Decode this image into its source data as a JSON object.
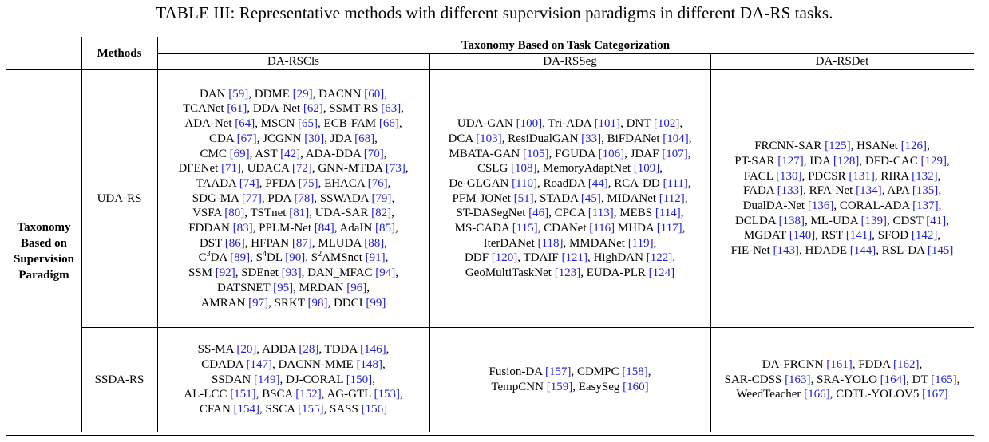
{
  "caption": "TABLE III: Representative methods with different supervision paradigms in different DA-RS tasks.",
  "header": {
    "methods": "Methods",
    "taxonomy_task": "Taxonomy Based on Task Categorization",
    "col_cls": "DA-RSCls",
    "col_seg": "DA-RSSeg",
    "col_det": "DA-RSDet"
  },
  "row_group": {
    "line1": "Taxonomy",
    "line2": "Based on",
    "line3": "Supervision",
    "line4": "Paradigm"
  },
  "rows": {
    "uda": {
      "label": "UDA-RS",
      "cls": [
        [
          [
            "DAN ",
            ""
          ],
          [
            "[59]",
            "r"
          ],
          [
            ", DDME ",
            ""
          ],
          [
            "[29]",
            "r"
          ],
          [
            ", DACNN ",
            ""
          ],
          [
            "[60]",
            "r"
          ],
          [
            ",",
            ""
          ]
        ],
        [
          [
            "TCANet ",
            ""
          ],
          [
            "[61]",
            "r"
          ],
          [
            ", DDA-Net ",
            ""
          ],
          [
            "[62]",
            "r"
          ],
          [
            ", SSMT-RS ",
            ""
          ],
          [
            "[63]",
            "r"
          ],
          [
            ",",
            ""
          ]
        ],
        [
          [
            "ADA-Net ",
            ""
          ],
          [
            "[64]",
            "r"
          ],
          [
            ", MSCN ",
            ""
          ],
          [
            "[65]",
            "r"
          ],
          [
            ", ECB-FAM ",
            ""
          ],
          [
            "[66]",
            "r"
          ],
          [
            ",",
            ""
          ]
        ],
        [
          [
            "CDA ",
            ""
          ],
          [
            "[67]",
            "r"
          ],
          [
            ", JCGNN ",
            ""
          ],
          [
            "[30]",
            "r"
          ],
          [
            ", JDA ",
            ""
          ],
          [
            "[68]",
            "r"
          ],
          [
            ",",
            ""
          ]
        ],
        [
          [
            "CMC ",
            ""
          ],
          [
            "[69]",
            "r"
          ],
          [
            ", AST ",
            ""
          ],
          [
            "[42]",
            "r"
          ],
          [
            ", ADA-DDA ",
            ""
          ],
          [
            "[70]",
            "r"
          ],
          [
            ",",
            ""
          ]
        ],
        [
          [
            "DFENet ",
            ""
          ],
          [
            "[71]",
            "r"
          ],
          [
            ", UDACA ",
            ""
          ],
          [
            "[72]",
            "r"
          ],
          [
            ", GNN-MTDA ",
            ""
          ],
          [
            "[73]",
            "r"
          ],
          [
            ",",
            ""
          ]
        ],
        [
          [
            "TAADA ",
            ""
          ],
          [
            "[74]",
            "r"
          ],
          [
            ", PFDA ",
            ""
          ],
          [
            "[75]",
            "r"
          ],
          [
            ", EHACA ",
            ""
          ],
          [
            "[76]",
            "r"
          ],
          [
            ",",
            ""
          ]
        ],
        [
          [
            "SDG-MA ",
            ""
          ],
          [
            "[77]",
            "r"
          ],
          [
            ", PDA ",
            ""
          ],
          [
            "[78]",
            "r"
          ],
          [
            ", SSWADA ",
            ""
          ],
          [
            "[79]",
            "r"
          ],
          [
            ",",
            ""
          ]
        ],
        [
          [
            "VSFA ",
            ""
          ],
          [
            "[80]",
            "r"
          ],
          [
            ", TSTnet ",
            ""
          ],
          [
            "[81]",
            "r"
          ],
          [
            ", UDA-SAR ",
            ""
          ],
          [
            "[82]",
            "r"
          ],
          [
            ",",
            ""
          ]
        ],
        [
          [
            "FDDAN ",
            ""
          ],
          [
            "[83]",
            "r"
          ],
          [
            ", PPLM-Net ",
            ""
          ],
          [
            "[84]",
            "r"
          ],
          [
            ", AdaIN ",
            ""
          ],
          [
            "[85]",
            "r"
          ],
          [
            ",",
            ""
          ]
        ],
        [
          [
            "DST ",
            ""
          ],
          [
            "[86]",
            "r"
          ],
          [
            ", HFPAN ",
            ""
          ],
          [
            "[87]",
            "r"
          ],
          [
            ", MLUDA ",
            ""
          ],
          [
            "[88]",
            "r"
          ],
          [
            ",",
            ""
          ]
        ],
        [
          [
            "C",
            ""
          ],
          [
            "3",
            "sup"
          ],
          [
            "DA ",
            ""
          ],
          [
            "[89]",
            "r"
          ],
          [
            ", S",
            ""
          ],
          [
            "4",
            "sup"
          ],
          [
            "DL ",
            ""
          ],
          [
            "[90]",
            "r"
          ],
          [
            ", S",
            ""
          ],
          [
            "2",
            "sup"
          ],
          [
            "AMSnet ",
            ""
          ],
          [
            "[91]",
            "r"
          ],
          [
            ",",
            ""
          ]
        ],
        [
          [
            "SSM ",
            ""
          ],
          [
            "[92]",
            "r"
          ],
          [
            ", SDEnet ",
            ""
          ],
          [
            "[93]",
            "r"
          ],
          [
            ", DAN_MFAC ",
            ""
          ],
          [
            "[94]",
            "r"
          ],
          [
            ",",
            ""
          ]
        ],
        [
          [
            "DATSNET ",
            ""
          ],
          [
            "[95]",
            "r"
          ],
          [
            ", MRDAN ",
            ""
          ],
          [
            "[96]",
            "r"
          ],
          [
            ",",
            ""
          ]
        ],
        [
          [
            "AMRAN ",
            ""
          ],
          [
            "[97]",
            "r"
          ],
          [
            ", SRKT ",
            ""
          ],
          [
            "[98]",
            "r"
          ],
          [
            ", DDCI ",
            ""
          ],
          [
            "[99]",
            "r"
          ]
        ]
      ],
      "seg": [
        [
          [
            "UDA-GAN ",
            ""
          ],
          [
            "[100]",
            "r"
          ],
          [
            ", Tri-ADA ",
            ""
          ],
          [
            "[101]",
            "r"
          ],
          [
            ", DNT ",
            ""
          ],
          [
            "[102]",
            "r"
          ],
          [
            ",",
            ""
          ]
        ],
        [
          [
            "DCA ",
            ""
          ],
          [
            "[103]",
            "r"
          ],
          [
            ", ResiDualGAN ",
            ""
          ],
          [
            "[33]",
            "r"
          ],
          [
            ", BiFDANet ",
            ""
          ],
          [
            "[104]",
            "r"
          ],
          [
            ",",
            ""
          ]
        ],
        [
          [
            "MBATA-GAN ",
            ""
          ],
          [
            "[105]",
            "r"
          ],
          [
            ", FGUDA ",
            ""
          ],
          [
            "[106]",
            "r"
          ],
          [
            ", JDAF ",
            ""
          ],
          [
            "[107]",
            "r"
          ],
          [
            ",",
            ""
          ]
        ],
        [
          [
            "CSLG ",
            ""
          ],
          [
            "[108]",
            "r"
          ],
          [
            ", MemoryAdaptNet ",
            ""
          ],
          [
            "[109]",
            "r"
          ],
          [
            ",",
            ""
          ]
        ],
        [
          [
            "De-GLGAN ",
            ""
          ],
          [
            "[110]",
            "r"
          ],
          [
            ", RoadDA ",
            ""
          ],
          [
            "[44]",
            "r"
          ],
          [
            ", RCA-DD ",
            ""
          ],
          [
            "[111]",
            "r"
          ],
          [
            ",",
            ""
          ]
        ],
        [
          [
            "PFM-JONet ",
            ""
          ],
          [
            "[51]",
            "r"
          ],
          [
            ", STADA ",
            ""
          ],
          [
            "[45]",
            "r"
          ],
          [
            ", MIDANet ",
            ""
          ],
          [
            "[112]",
            "r"
          ],
          [
            ",",
            ""
          ]
        ],
        [
          [
            "ST-DASegNet ",
            ""
          ],
          [
            "[46]",
            "r"
          ],
          [
            ", CPCA ",
            ""
          ],
          [
            "[113]",
            "r"
          ],
          [
            ", MEBS ",
            ""
          ],
          [
            "[114]",
            "r"
          ],
          [
            ",",
            ""
          ]
        ],
        [
          [
            "MS-CADA ",
            ""
          ],
          [
            "[115]",
            "r"
          ],
          [
            ", CDANet ",
            ""
          ],
          [
            "[116]",
            "r"
          ],
          [
            " MHDA ",
            ""
          ],
          [
            "[117]",
            "r"
          ],
          [
            ",",
            ""
          ]
        ],
        [
          [
            "IterDANet ",
            ""
          ],
          [
            "[118]",
            "r"
          ],
          [
            ", MMDANet ",
            ""
          ],
          [
            "[119]",
            "r"
          ],
          [
            ",",
            ""
          ]
        ],
        [
          [
            "DDF ",
            ""
          ],
          [
            "[120]",
            "r"
          ],
          [
            ", TDAIF ",
            ""
          ],
          [
            "[121]",
            "r"
          ],
          [
            ", HighDAN ",
            ""
          ],
          [
            "[122]",
            "r"
          ],
          [
            ",",
            ""
          ]
        ],
        [
          [
            "GeoMultiTaskNet ",
            ""
          ],
          [
            "[123]",
            "r"
          ],
          [
            ", EUDA-PLR ",
            ""
          ],
          [
            "[124]",
            "r"
          ]
        ]
      ],
      "det": [
        [
          [
            "FRCNN-SAR ",
            ""
          ],
          [
            "[125]",
            "r"
          ],
          [
            ", HSANet ",
            ""
          ],
          [
            "[126]",
            "r"
          ],
          [
            ",",
            ""
          ]
        ],
        [
          [
            "PT-SAR ",
            ""
          ],
          [
            "[127]",
            "r"
          ],
          [
            ", IDA ",
            ""
          ],
          [
            "[128]",
            "r"
          ],
          [
            ", DFD-CAC ",
            ""
          ],
          [
            "[129]",
            "r"
          ],
          [
            ",",
            ""
          ]
        ],
        [
          [
            "FACL ",
            ""
          ],
          [
            "[130]",
            "r"
          ],
          [
            ", PDCSR ",
            ""
          ],
          [
            "[131]",
            "r"
          ],
          [
            ", RIRA ",
            ""
          ],
          [
            "[132]",
            "r"
          ],
          [
            ",",
            ""
          ]
        ],
        [
          [
            "FADA ",
            ""
          ],
          [
            "[133]",
            "r"
          ],
          [
            ", RFA-Net ",
            ""
          ],
          [
            "[134]",
            "r"
          ],
          [
            ", APA ",
            ""
          ],
          [
            "[135]",
            "r"
          ],
          [
            ",",
            ""
          ]
        ],
        [
          [
            "DualDA-Net ",
            ""
          ],
          [
            "[136]",
            "r"
          ],
          [
            ", CORAL-ADA ",
            ""
          ],
          [
            "[137]",
            "r"
          ],
          [
            ",",
            ""
          ]
        ],
        [
          [
            "DCLDA ",
            ""
          ],
          [
            "[138]",
            "r"
          ],
          [
            ", ML-UDA ",
            ""
          ],
          [
            "[139]",
            "r"
          ],
          [
            ", CDST ",
            ""
          ],
          [
            "[41]",
            "r"
          ],
          [
            ",",
            ""
          ]
        ],
        [
          [
            "MGDAT ",
            ""
          ],
          [
            "[140]",
            "r"
          ],
          [
            ", RST ",
            ""
          ],
          [
            "[141]",
            "r"
          ],
          [
            ", SFOD ",
            ""
          ],
          [
            "[142]",
            "r"
          ],
          [
            ",",
            ""
          ]
        ],
        [
          [
            "FIE-Net ",
            ""
          ],
          [
            "[143]",
            "r"
          ],
          [
            ", HDADE ",
            ""
          ],
          [
            "[144]",
            "r"
          ],
          [
            ", RSL-DA ",
            ""
          ],
          [
            "[145]",
            "r"
          ]
        ]
      ]
    },
    "ssda": {
      "label": "SSDA-RS",
      "cls": [
        [
          [
            "SS-MA ",
            ""
          ],
          [
            "[20]",
            "r"
          ],
          [
            ", ADDA ",
            ""
          ],
          [
            "[28]",
            "r"
          ],
          [
            ", TDDA ",
            ""
          ],
          [
            "[146]",
            "r"
          ],
          [
            ",",
            ""
          ]
        ],
        [
          [
            "CDADA ",
            ""
          ],
          [
            "[147]",
            "r"
          ],
          [
            ", DACNN-MME ",
            ""
          ],
          [
            "[148]",
            "r"
          ],
          [
            ",",
            ""
          ]
        ],
        [
          [
            "SSDAN ",
            ""
          ],
          [
            "[149]",
            "r"
          ],
          [
            ", DJ-CORAL ",
            ""
          ],
          [
            "[150]",
            "r"
          ],
          [
            ",",
            ""
          ]
        ],
        [
          [
            "AL-LCC ",
            ""
          ],
          [
            "[151]",
            "r"
          ],
          [
            ", BSCA ",
            ""
          ],
          [
            "[152]",
            "r"
          ],
          [
            ", AG-GTL ",
            ""
          ],
          [
            "[153]",
            "r"
          ],
          [
            ",",
            ""
          ]
        ],
        [
          [
            "CFAN ",
            ""
          ],
          [
            "[154]",
            "r"
          ],
          [
            ", SSCA ",
            ""
          ],
          [
            "[155]",
            "r"
          ],
          [
            ", SASS ",
            ""
          ],
          [
            "[156]",
            "r"
          ]
        ]
      ],
      "seg": [
        [
          [
            "Fusion-DA ",
            ""
          ],
          [
            "[157]",
            "r"
          ],
          [
            ", CDMPC ",
            ""
          ],
          [
            "[158]",
            "r"
          ],
          [
            ",",
            ""
          ]
        ],
        [
          [
            "TempCNN ",
            ""
          ],
          [
            "[159]",
            "r"
          ],
          [
            ", EasySeg ",
            ""
          ],
          [
            "[160]",
            "r"
          ]
        ]
      ],
      "det": [
        [
          [
            "DA-FRCNN ",
            ""
          ],
          [
            "[161]",
            "r"
          ],
          [
            ", FDDA ",
            ""
          ],
          [
            "[162]",
            "r"
          ],
          [
            ",",
            ""
          ]
        ],
        [
          [
            "SAR-CDSS ",
            ""
          ],
          [
            "[163]",
            "r"
          ],
          [
            ", SRA-YOLO ",
            ""
          ],
          [
            "[164]",
            "r"
          ],
          [
            ", DT ",
            ""
          ],
          [
            "[165]",
            "r"
          ],
          [
            ",",
            ""
          ]
        ],
        [
          [
            "WeedTeacher ",
            ""
          ],
          [
            "[166]",
            "r"
          ],
          [
            ", CDTL-YOLOV5 ",
            ""
          ],
          [
            "[167]",
            "r"
          ]
        ]
      ]
    }
  }
}
